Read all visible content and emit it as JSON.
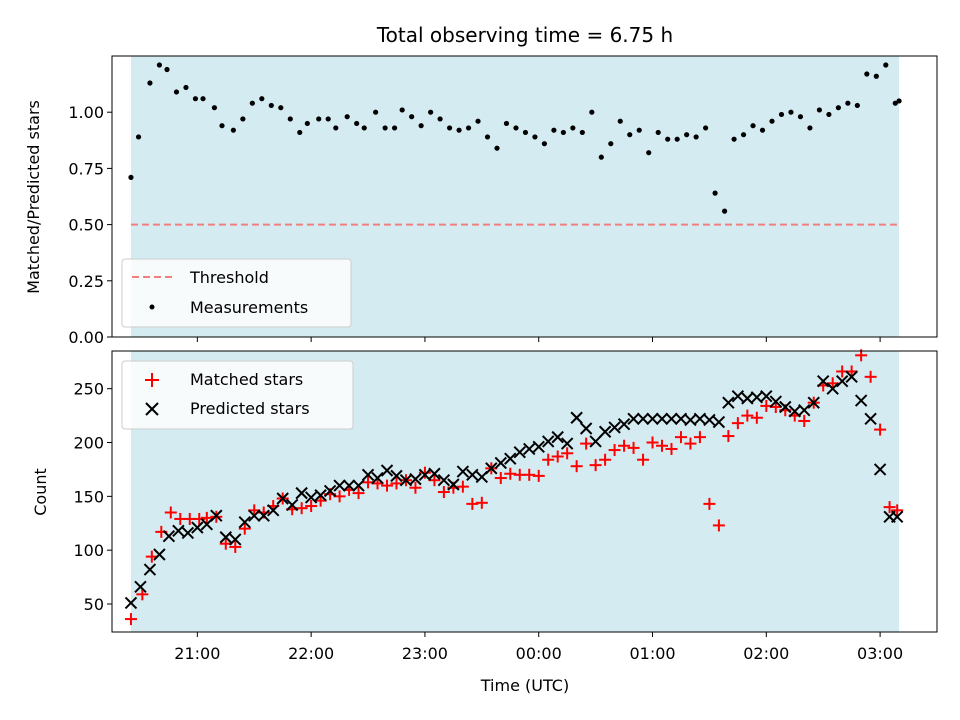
{
  "title": "Total observing time = 6.75 h",
  "colors": {
    "observing_span": "#d4ebf1",
    "threshold": "#f08080",
    "measurements": "#000000",
    "matched": "#ff0000",
    "predicted": "#000000"
  },
  "chart_data": [
    {
      "type": "scatter",
      "panel": "top",
      "ylabel": "Matched/Predicted stars",
      "ylim": [
        0,
        1.25
      ],
      "yticks": [
        "0.00",
        "0.25",
        "0.50",
        "0.75",
        "1.00"
      ],
      "xlim": [
        "20:15",
        "03:30"
      ],
      "observing_span": [
        "20:25",
        "03:10"
      ],
      "legend": {
        "placement": "lower-left",
        "entries": [
          "Threshold",
          "Measurements"
        ]
      },
      "threshold": {
        "name": "Threshold",
        "y": 0.5,
        "style": "dashed"
      },
      "series": [
        {
          "name": "Measurements",
          "marker": "dot",
          "x": [
            "20:25",
            "20:29",
            "20:35",
            "20:40",
            "20:44",
            "20:49",
            "20:54",
            "20:59",
            "21:03",
            "21:09",
            "21:13",
            "21:19",
            "21:24",
            "21:29",
            "21:34",
            "21:39",
            "21:44",
            "21:49",
            "21:54",
            "21:58",
            "22:04",
            "22:09",
            "22:13",
            "22:19",
            "22:24",
            "22:28",
            "22:34",
            "22:39",
            "22:44",
            "22:48",
            "22:53",
            "22:58",
            "23:03",
            "23:08",
            "23:13",
            "23:18",
            "23:23",
            "23:28",
            "23:33",
            "23:38",
            "23:43",
            "23:48",
            "23:53",
            "23:58",
            "00:03",
            "00:08",
            "00:13",
            "00:18",
            "00:23",
            "00:28",
            "00:33",
            "00:38",
            "00:43",
            "00:48",
            "00:53",
            "00:58",
            "01:03",
            "01:08",
            "01:13",
            "01:18",
            "01:23",
            "01:28",
            "01:33",
            "01:38",
            "01:43",
            "01:48",
            "01:53",
            "01:58",
            "02:03",
            "02:08",
            "02:13",
            "02:18",
            "02:23",
            "02:28",
            "02:33",
            "02:38",
            "02:43",
            "02:48",
            "02:53",
            "02:58",
            "03:03",
            "03:08",
            "03:10"
          ],
          "y": [
            0.71,
            0.89,
            1.13,
            1.21,
            1.19,
            1.09,
            1.11,
            1.06,
            1.06,
            1.02,
            0.94,
            0.92,
            0.97,
            1.04,
            1.06,
            1.03,
            1.02,
            0.97,
            0.91,
            0.95,
            0.97,
            0.97,
            0.93,
            0.98,
            0.95,
            0.93,
            1.0,
            0.93,
            0.93,
            1.01,
            0.98,
            0.94,
            1.0,
            0.97,
            0.93,
            0.92,
            0.93,
            0.96,
            0.89,
            0.84,
            0.95,
            0.93,
            0.91,
            0.89,
            0.86,
            0.92,
            0.91,
            0.93,
            0.91,
            1.0,
            0.8,
            0.86,
            0.96,
            0.9,
            0.92,
            0.82,
            0.91,
            0.88,
            0.88,
            0.9,
            0.89,
            0.93,
            0.64,
            0.56,
            0.88,
            0.9,
            0.94,
            0.92,
            0.96,
            0.99,
            1.0,
            0.98,
            0.93,
            1.01,
            0.99,
            1.02,
            1.04,
            1.03,
            1.17,
            1.16,
            1.21,
            1.04,
            1.05
          ]
        }
      ]
    },
    {
      "type": "scatter",
      "panel": "bottom",
      "xlabel": "Time (UTC)",
      "ylabel": "Count",
      "ylim": [
        24,
        285
      ],
      "yticks": [
        "50",
        "100",
        "150",
        "200",
        "250"
      ],
      "xlim": [
        "20:15",
        "03:30"
      ],
      "xticks": [
        "21:00",
        "22:00",
        "23:00",
        "00:00",
        "01:00",
        "02:00",
        "03:00"
      ],
      "observing_span": [
        "20:25",
        "03:10"
      ],
      "legend": {
        "placement": "upper-left",
        "entries": [
          "Matched stars",
          "Predicted stars"
        ]
      },
      "series": [
        {
          "name": "Matched stars",
          "marker": "plus",
          "x": [
            "20:25",
            "20:31",
            "20:36",
            "20:41",
            "20:46",
            "20:51",
            "20:56",
            "21:01",
            "21:05",
            "21:10",
            "21:15",
            "21:20",
            "21:25",
            "21:30",
            "21:35",
            "21:40",
            "21:45",
            "21:50",
            "21:55",
            "22:00",
            "22:05",
            "22:10",
            "22:15",
            "22:20",
            "22:25",
            "22:30",
            "22:35",
            "22:40",
            "22:45",
            "22:50",
            "22:55",
            "23:00",
            "23:05",
            "23:10",
            "23:15",
            "23:20",
            "23:25",
            "23:30",
            "23:35",
            "23:40",
            "23:45",
            "23:50",
            "23:55",
            "00:00",
            "00:05",
            "00:10",
            "00:15",
            "00:20",
            "00:25",
            "00:30",
            "00:35",
            "00:40",
            "00:45",
            "00:50",
            "00:55",
            "01:00",
            "01:05",
            "01:10",
            "01:15",
            "01:20",
            "01:25",
            "01:30",
            "01:35",
            "01:40",
            "01:45",
            "01:50",
            "01:55",
            "02:00",
            "02:05",
            "02:10",
            "02:15",
            "02:20",
            "02:25",
            "02:30",
            "02:35",
            "02:40",
            "02:45",
            "02:50",
            "02:55",
            "03:00",
            "03:05",
            "03:09"
          ],
          "y": [
            36,
            59,
            94,
            117,
            135,
            129,
            129,
            129,
            130,
            131,
            106,
            103,
            120,
            137,
            135,
            141,
            148,
            138,
            139,
            141,
            146,
            152,
            150,
            156,
            153,
            163,
            162,
            160,
            162,
            165,
            158,
            172,
            165,
            154,
            158,
            159,
            143,
            144,
            176,
            167,
            171,
            170,
            170,
            169,
            184,
            187,
            190,
            178,
            199,
            179,
            184,
            193,
            197,
            195,
            184,
            200,
            197,
            194,
            205,
            199,
            205,
            143,
            123,
            206,
            218,
            225,
            223,
            234,
            233,
            230,
            225,
            220,
            237,
            253,
            255,
            266,
            266,
            281,
            261,
            212,
            140,
            137
          ]
        },
        {
          "name": "Predicted stars",
          "marker": "x",
          "x": [
            "20:25",
            "20:30",
            "20:35",
            "20:40",
            "20:45",
            "20:50",
            "20:55",
            "21:00",
            "21:05",
            "21:10",
            "21:15",
            "21:20",
            "21:25",
            "21:30",
            "21:35",
            "21:40",
            "21:45",
            "21:50",
            "21:55",
            "22:00",
            "22:05",
            "22:10",
            "22:15",
            "22:20",
            "22:25",
            "22:30",
            "22:35",
            "22:40",
            "22:45",
            "22:50",
            "22:55",
            "23:00",
            "23:05",
            "23:10",
            "23:15",
            "23:20",
            "23:25",
            "23:30",
            "23:35",
            "23:40",
            "23:45",
            "23:50",
            "23:55",
            "00:00",
            "00:05",
            "00:10",
            "00:15",
            "00:20",
            "00:25",
            "00:30",
            "00:35",
            "00:40",
            "00:45",
            "00:50",
            "00:55",
            "01:00",
            "01:05",
            "01:10",
            "01:15",
            "01:20",
            "01:25",
            "01:30",
            "01:35",
            "01:40",
            "01:45",
            "01:50",
            "01:55",
            "02:00",
            "02:05",
            "02:10",
            "02:15",
            "02:20",
            "02:25",
            "02:30",
            "02:35",
            "02:40",
            "02:45",
            "02:50",
            "02:55",
            "03:00",
            "03:05",
            "03:09"
          ],
          "y": [
            51,
            66,
            82,
            96,
            113,
            118,
            116,
            121,
            124,
            132,
            112,
            110,
            126,
            132,
            132,
            137,
            148,
            142,
            153,
            149,
            151,
            155,
            160,
            160,
            160,
            170,
            167,
            174,
            169,
            165,
            166,
            170,
            171,
            165,
            161,
            173,
            170,
            168,
            176,
            181,
            185,
            191,
            194,
            196,
            201,
            205,
            199,
            223,
            213,
            201,
            210,
            214,
            217,
            222,
            222,
            222,
            222,
            222,
            222,
            221,
            222,
            221,
            219,
            237,
            243,
            241,
            242,
            243,
            238,
            233,
            229,
            230,
            237,
            257,
            250,
            257,
            261,
            239,
            222,
            175,
            131,
            131
          ]
        }
      ]
    }
  ]
}
